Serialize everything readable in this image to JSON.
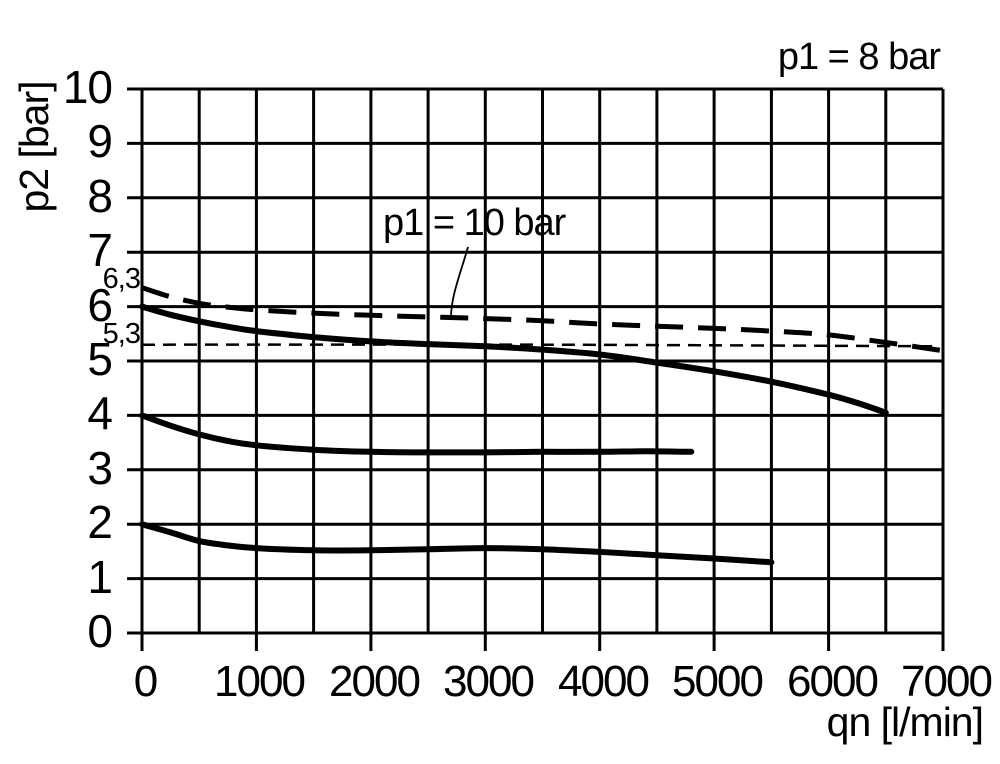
{
  "page": {
    "background": "#ffffff",
    "ink": "#000000"
  },
  "chart_data": {
    "type": "line",
    "title": "",
    "xlabel": "qn [l/min]",
    "ylabel": "p2 [bar]",
    "xlim": [
      0,
      7000
    ],
    "ylim": [
      0,
      10
    ],
    "grid": true,
    "x_grid_step": 500,
    "x_major_ticks": [
      0,
      1000,
      2000,
      3000,
      4000,
      5000,
      6000,
      7000
    ],
    "y_ticks": [
      0,
      1,
      2,
      3,
      4,
      5,
      6,
      7,
      8,
      9,
      10
    ],
    "annotations": {
      "p1_8bar": {
        "text": "p1 = 8 bar"
      },
      "p1_10bar": {
        "text": "p1 = 10 bar",
        "leader_points_to": {
          "x": 2700,
          "y": 5.8
        }
      }
    },
    "reference_labels": [
      {
        "text": "6,3",
        "y": 6.3
      },
      {
        "text": "5,3",
        "y": 5.3
      }
    ],
    "series": [
      {
        "id": "curve-p1-10bar-dashed",
        "style": "long-dash",
        "stroke_width": 5,
        "points": [
          [
            0,
            6.35
          ],
          [
            250,
            6.18
          ],
          [
            500,
            6.06
          ],
          [
            750,
            5.99
          ],
          [
            1000,
            5.94
          ],
          [
            1500,
            5.88
          ],
          [
            2000,
            5.84
          ],
          [
            2500,
            5.81
          ],
          [
            3000,
            5.78
          ],
          [
            3500,
            5.74
          ],
          [
            4000,
            5.68
          ],
          [
            4500,
            5.64
          ],
          [
            5000,
            5.6
          ],
          [
            5500,
            5.55
          ],
          [
            6000,
            5.48
          ],
          [
            6500,
            5.34
          ],
          [
            7000,
            5.19
          ]
        ]
      },
      {
        "id": "reference-line-5-3-bar",
        "style": "fine-dash",
        "stroke_width": 2.5,
        "points": [
          [
            0,
            5.3
          ],
          [
            3500,
            5.3
          ],
          [
            6950,
            5.27
          ]
        ]
      },
      {
        "id": "curve-p1-8bar-solid",
        "style": "solid",
        "stroke_width": 6,
        "points": [
          [
            0,
            6.0
          ],
          [
            250,
            5.85
          ],
          [
            500,
            5.73
          ],
          [
            750,
            5.63
          ],
          [
            1000,
            5.55
          ],
          [
            1500,
            5.44
          ],
          [
            2000,
            5.36
          ],
          [
            2500,
            5.31
          ],
          [
            3000,
            5.27
          ],
          [
            3500,
            5.21
          ],
          [
            4000,
            5.12
          ],
          [
            4500,
            4.97
          ],
          [
            5000,
            4.81
          ],
          [
            5500,
            4.62
          ],
          [
            6000,
            4.38
          ],
          [
            6250,
            4.23
          ],
          [
            6500,
            4.05
          ]
        ]
      },
      {
        "id": "curve-set-4bar-solid",
        "style": "solid",
        "stroke_width": 6,
        "points": [
          [
            0,
            4.0
          ],
          [
            250,
            3.81
          ],
          [
            500,
            3.65
          ],
          [
            750,
            3.53
          ],
          [
            1000,
            3.45
          ],
          [
            1500,
            3.37
          ],
          [
            2000,
            3.33
          ],
          [
            2500,
            3.32
          ],
          [
            3000,
            3.32
          ],
          [
            3500,
            3.33
          ],
          [
            4000,
            3.33
          ],
          [
            4400,
            3.34
          ],
          [
            4800,
            3.33
          ]
        ]
      },
      {
        "id": "curve-set-2bar-solid",
        "style": "solid",
        "stroke_width": 6,
        "points": [
          [
            0,
            2.0
          ],
          [
            250,
            1.85
          ],
          [
            500,
            1.69
          ],
          [
            750,
            1.61
          ],
          [
            1000,
            1.56
          ],
          [
            1500,
            1.52
          ],
          [
            2000,
            1.52
          ],
          [
            2500,
            1.54
          ],
          [
            3000,
            1.56
          ],
          [
            3500,
            1.54
          ],
          [
            4000,
            1.49
          ],
          [
            4500,
            1.43
          ],
          [
            5000,
            1.37
          ],
          [
            5500,
            1.3
          ]
        ]
      }
    ]
  }
}
